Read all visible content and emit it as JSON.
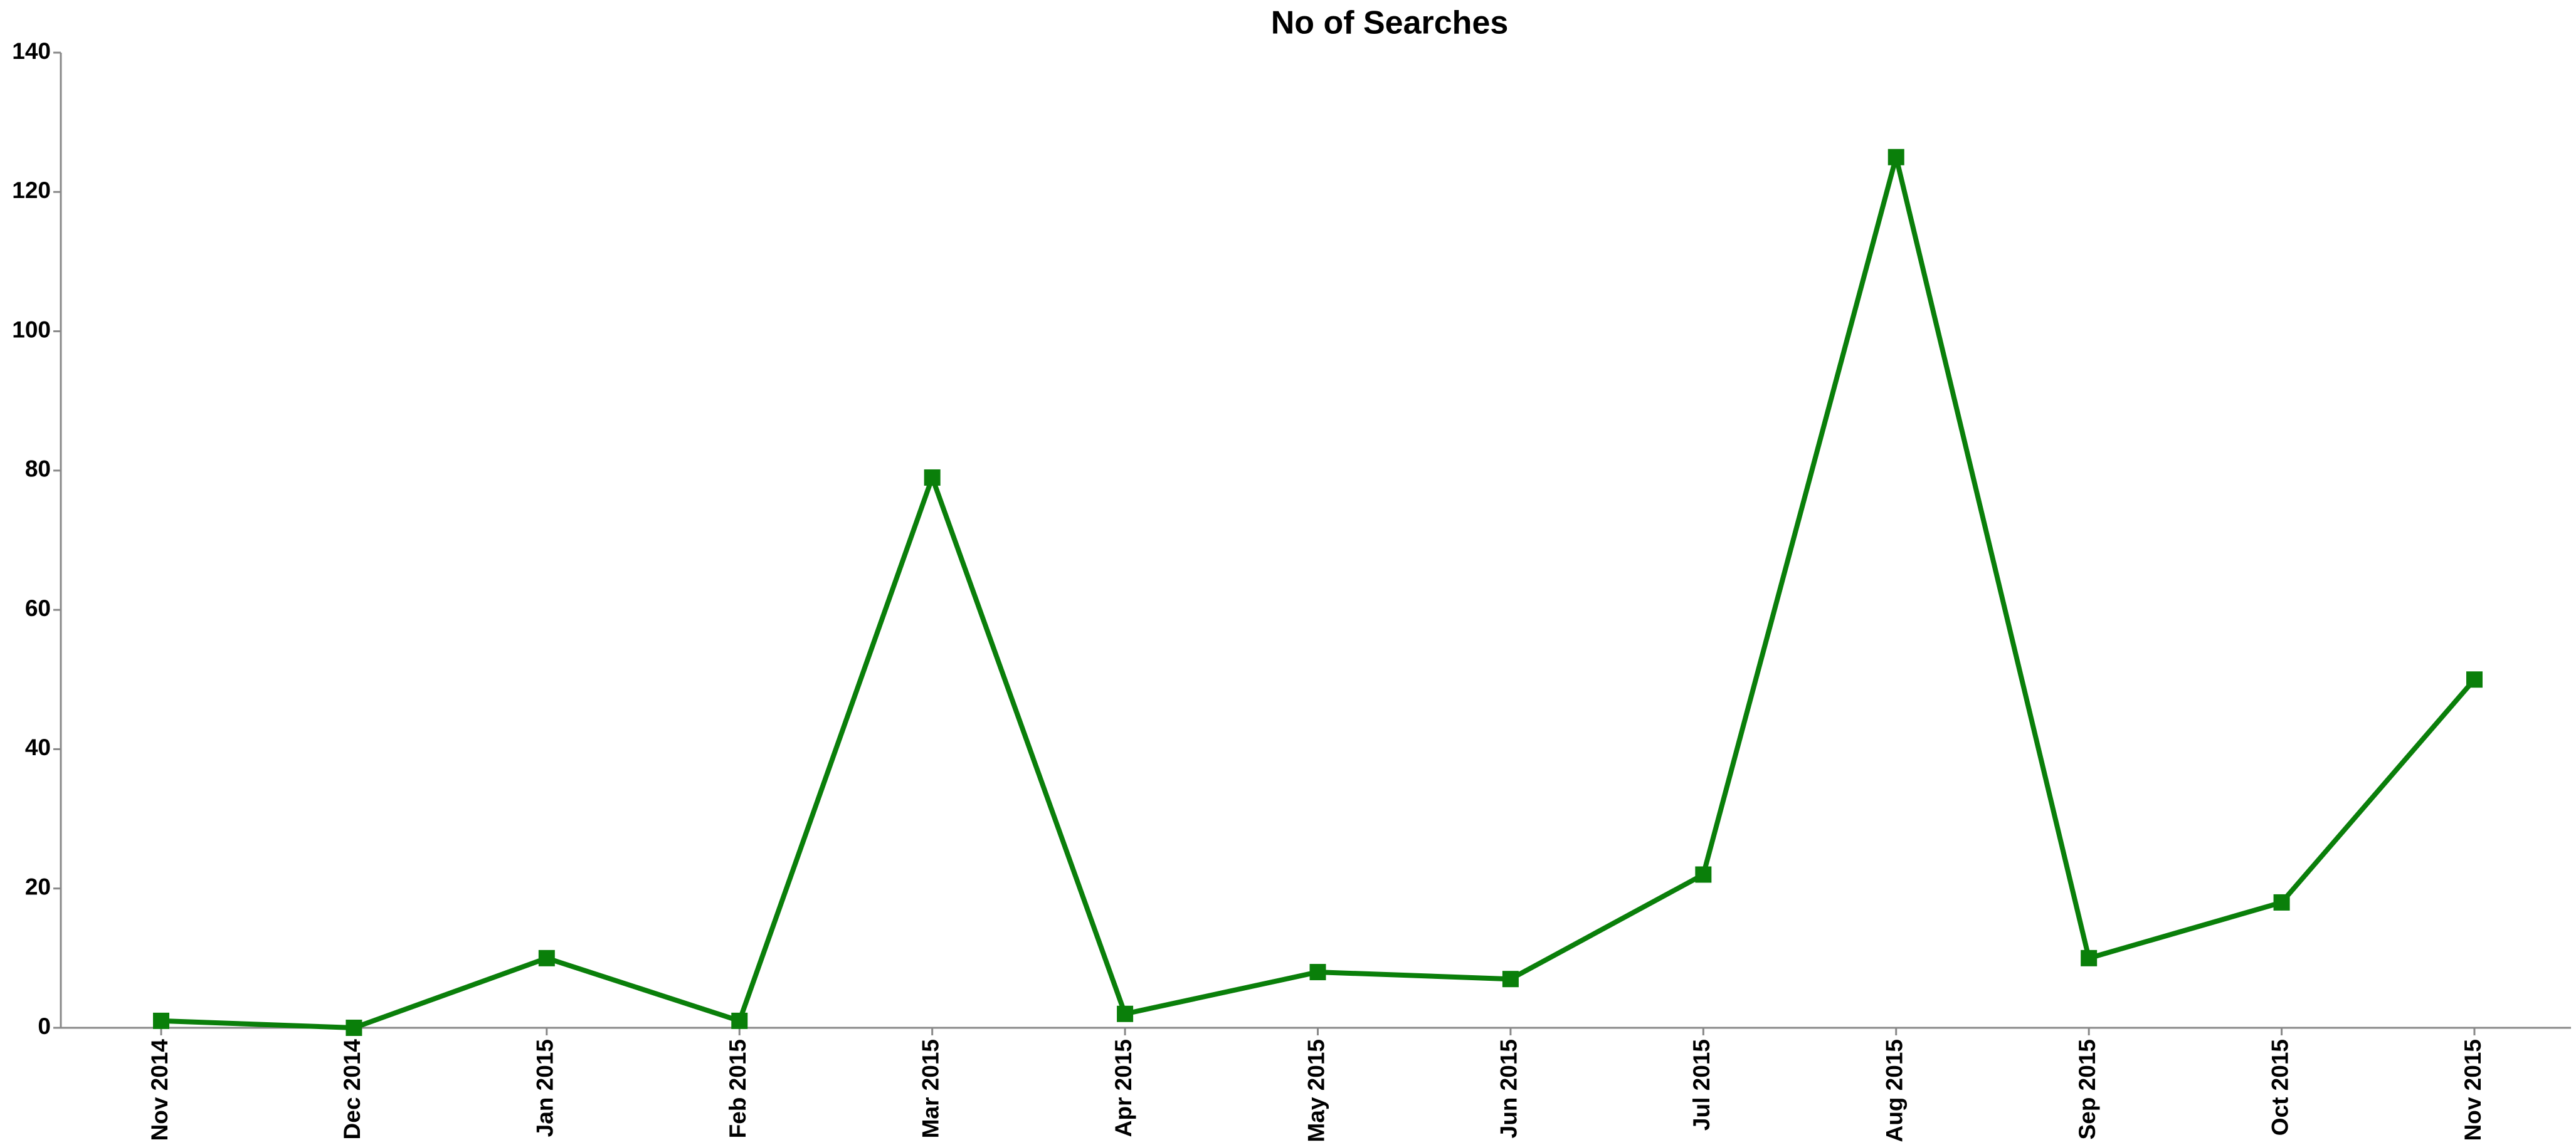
{
  "chart_data": {
    "type": "line",
    "title": "No of Searches",
    "categories": [
      "Nov 2014",
      "Dec 2014",
      "Jan 2015",
      "Feb 2015",
      "Mar 2015",
      "Apr 2015",
      "May 2015",
      "Jun 2015",
      "Jul 2015",
      "Aug 2015",
      "Sep 2015",
      "Oct 2015",
      "Nov 2015"
    ],
    "values": [
      1,
      0,
      10,
      1,
      79,
      2,
      8,
      7,
      22,
      125,
      10,
      18,
      50
    ],
    "color": "#0a7f0a",
    "ylim": [
      0,
      140
    ],
    "yticks": [
      0,
      20,
      40,
      60,
      80,
      100,
      120,
      140
    ],
    "grid": false
  }
}
